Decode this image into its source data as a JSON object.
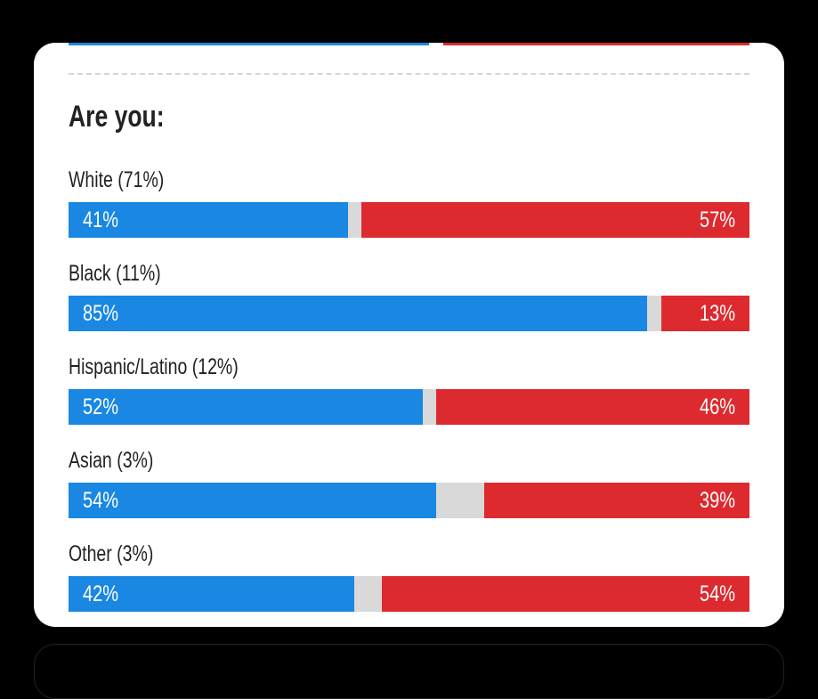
{
  "title": "Are you:",
  "colors": {
    "democrat": "#1a87e3",
    "republican": "#dd2a2e",
    "other": "#d9d9d9"
  },
  "chart_data": {
    "type": "bar",
    "orientation": "horizontal-stacked",
    "title": "Are you:",
    "categories": [
      "White (71%)",
      "Black (11%)",
      "Hispanic/Latino (12%)",
      "Asian (3%)",
      "Other (3%)"
    ],
    "series": [
      {
        "values": [
          41,
          85,
          52,
          54,
          42
        ],
        "labels": [
          "41%",
          "85%",
          "52%",
          "54%",
          "42%"
        ],
        "color": "#1a87e3"
      },
      {
        "values": [
          57,
          13,
          46,
          39,
          54
        ],
        "labels": [
          "57%",
          "13%",
          "46%",
          "39%",
          "54%"
        ],
        "color": "#dd2a2e"
      }
    ],
    "xlim": [
      0,
      100
    ]
  }
}
